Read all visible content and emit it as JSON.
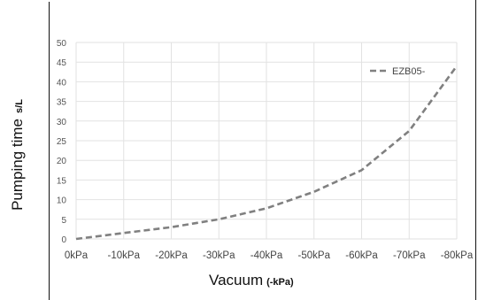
{
  "chart_data": {
    "type": "line",
    "title": "",
    "xlabel": "Vacuum",
    "xlabel_unit": "(-kPa)",
    "ylabel": "Pumping time",
    "ylabel_unit": "s/L",
    "categories": [
      "0kPa",
      "-10kPa",
      "-20kPa",
      "-30kPa",
      "-40kPa",
      "-50kPa",
      "-60kPa",
      "-70kPa",
      "-80kPa"
    ],
    "y_ticks": [
      "0",
      "5",
      "10",
      "15",
      "20",
      "25",
      "30",
      "35",
      "40",
      "45",
      "50"
    ],
    "ylim": [
      0,
      50
    ],
    "grid": true,
    "legend_position": "top-right",
    "series": [
      {
        "name": "EZB05-",
        "values": [
          0,
          1.5,
          3,
          5,
          7.8,
          12,
          17.5,
          27.5,
          44
        ],
        "color": "#808080",
        "style": "dashed"
      }
    ]
  }
}
